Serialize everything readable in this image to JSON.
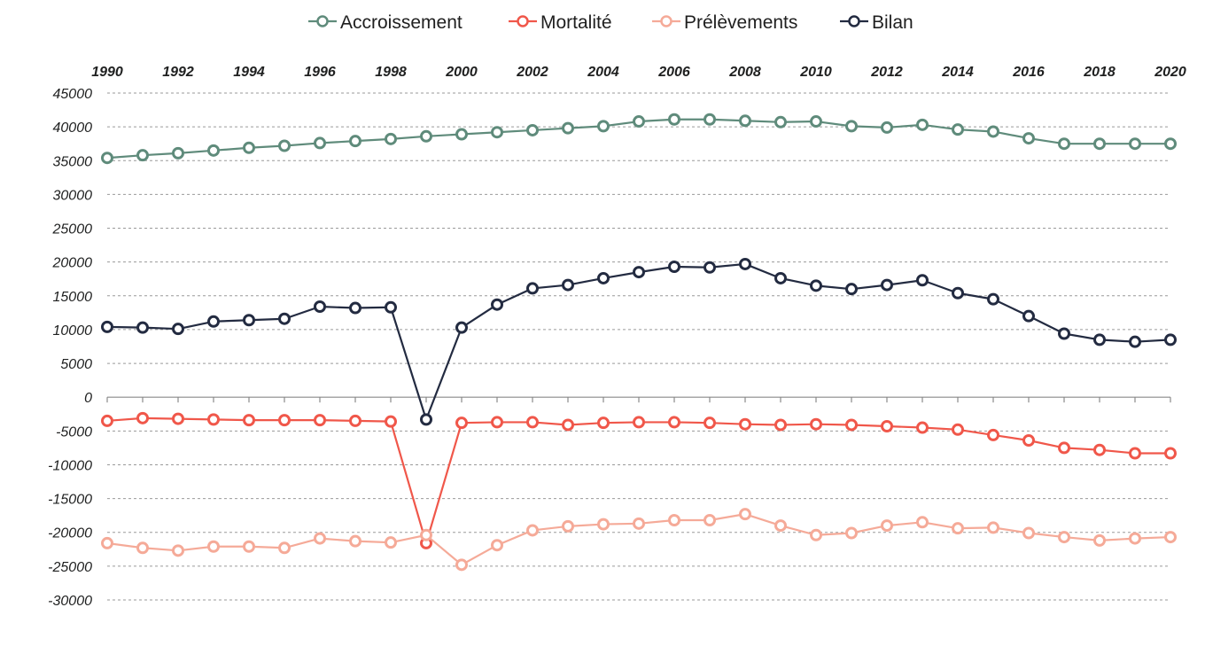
{
  "chart_data": {
    "type": "line",
    "x": [
      1990,
      1991,
      1992,
      1993,
      1994,
      1995,
      1996,
      1997,
      1998,
      1999,
      2000,
      2001,
      2002,
      2003,
      2004,
      2005,
      2006,
      2007,
      2008,
      2009,
      2010,
      2011,
      2012,
      2013,
      2014,
      2015,
      2016,
      2017,
      2018,
      2019,
      2020
    ],
    "x_tick_labels": [
      "1990",
      "1992",
      "1994",
      "1996",
      "1998",
      "2000",
      "2002",
      "2004",
      "2006",
      "2008",
      "2010",
      "2012",
      "2014",
      "2016",
      "2018",
      "2020"
    ],
    "y_tick_labels": [
      "45000",
      "40000",
      "35000",
      "30000",
      "25000",
      "20000",
      "15000",
      "10000",
      "5000",
      "0",
      "-5000",
      "-10000",
      "-15000",
      "-20000",
      "-25000",
      "-30000"
    ],
    "ylim": [
      -30000,
      45000
    ],
    "legend_position": "top",
    "x_axis_position": "top",
    "grid": "horizontal-dashed",
    "series": [
      {
        "name": "Accroissement",
        "color": "#5f8b7b",
        "values": [
          35400,
          35800,
          36100,
          36500,
          36900,
          37200,
          37600,
          37900,
          38200,
          38600,
          38900,
          39200,
          39500,
          39800,
          40100,
          40800,
          41100,
          41100,
          40900,
          40700,
          40800,
          40100,
          39900,
          40300,
          39600,
          39300,
          38300,
          37500,
          37500,
          37500,
          37500
        ]
      },
      {
        "name": "Mortalité",
        "color": "#f0574a",
        "values": [
          -3500,
          -3100,
          -3200,
          -3300,
          -3400,
          -3400,
          -3400,
          -3500,
          -3600,
          -21600,
          -3800,
          -3700,
          -3700,
          -4100,
          -3800,
          -3700,
          -3700,
          -3800,
          -4000,
          -4100,
          -4000,
          -4100,
          -4300,
          -4500,
          -4800,
          -5600,
          -6400,
          -7500,
          -7800,
          -8300,
          -8300
        ]
      },
      {
        "name": "Prélèvements",
        "color": "#f5aa98",
        "values": [
          -21600,
          -22300,
          -22700,
          -22100,
          -22100,
          -22300,
          -20900,
          -21300,
          -21500,
          -20400,
          -24800,
          -21900,
          -19700,
          -19100,
          -18800,
          -18700,
          -18200,
          -18200,
          -17300,
          -19000,
          -20400,
          -20100,
          -19000,
          -18500,
          -19400,
          -19300,
          -20100,
          -20700,
          -21200,
          -20900,
          -20700
        ]
      },
      {
        "name": "Bilan",
        "color": "#232b41",
        "values": [
          10400,
          10300,
          10100,
          11200,
          11400,
          11600,
          13400,
          13200,
          13300,
          -3300,
          10300,
          13700,
          16100,
          16600,
          17600,
          18500,
          19300,
          19200,
          19700,
          17600,
          16500,
          16000,
          16600,
          17300,
          15400,
          14500,
          12000,
          9400,
          8500,
          8200,
          8500
        ]
      }
    ]
  }
}
